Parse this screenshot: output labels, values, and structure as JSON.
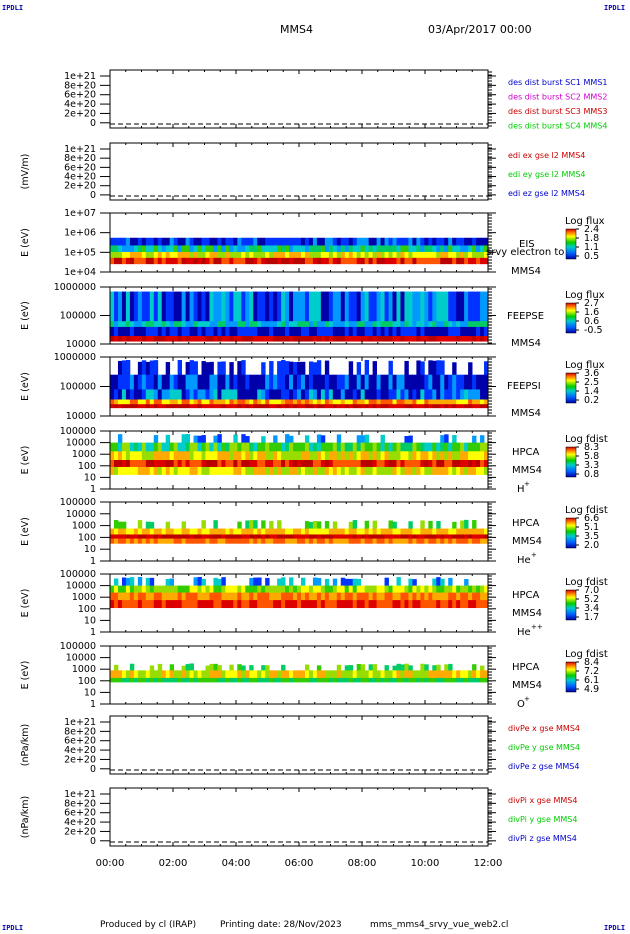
{
  "corner": {
    "tl": "IPDLI",
    "tr": "IPDLI",
    "bl": "IPDLI",
    "br": "IPDLI"
  },
  "header": {
    "spacecraft": "MMS4",
    "date": "03/Apr/2017 00:00"
  },
  "footer": {
    "produced": "Produced by cl (IRAP)",
    "printing": "Printing date: 28/Nov/2023",
    "script": "mms_mms4_srvy_vue_web2.cl"
  },
  "colors": {
    "frame": "#000000",
    "red": "#cc0000",
    "green": "#00cc00",
    "blue": "#0000cc",
    "magenta": "#cc00cc"
  },
  "chart_data": [
    {
      "type": "line",
      "ylabel": "",
      "yticks": [
        "1e+21",
        "8e+20",
        "6e+20",
        "4e+20",
        "2e+20",
        "0"
      ],
      "legend": [
        {
          "text": "des dist burst SC1 MMS1",
          "color": "#0000cc"
        },
        {
          "text": "des dist burst SC2 MMS2",
          "color": "#cc00cc"
        },
        {
          "text": "des dist burst SC3 MMS3",
          "color": "#cc0000"
        },
        {
          "text": "des dist burst SC4 MMS4",
          "color": "#00cc00"
        }
      ]
    },
    {
      "type": "line",
      "ylabel": "(mV/m)",
      "yticks": [
        "1e+21",
        "8e+20",
        "6e+20",
        "4e+20",
        "2e+20",
        "0"
      ],
      "legend": [
        {
          "text": "edi ex gse l2 MMS4",
          "color": "#cc0000"
        },
        {
          "text": "edi ey gse l2 MMS4",
          "color": "#00cc00"
        },
        {
          "text": "edi ez gse l2 MMS4",
          "color": "#0000cc"
        }
      ]
    },
    {
      "type": "heatmap",
      "ylabel": "E (eV)",
      "yticks": [
        "1e+07",
        "1e+06",
        "1e+05",
        "1e+04"
      ],
      "instrument": [
        "EIS",
        "srvy electron to",
        "MMS4"
      ],
      "cbar_title": "Log flux",
      "cbar_ticks": [
        "2.4",
        "1.8",
        "1.1",
        "0.5"
      ]
    },
    {
      "type": "heatmap",
      "ylabel": "E (eV)",
      "yticks": [
        "1000000",
        "100000",
        "10000"
      ],
      "instrument": [
        "FEEPSE",
        "MMS4"
      ],
      "cbar_title": "Log flux",
      "cbar_ticks": [
        "2.7",
        "1.6",
        "0.6",
        "-0.5"
      ]
    },
    {
      "type": "heatmap",
      "ylabel": "E (eV)",
      "yticks": [
        "1000000",
        "100000",
        "10000"
      ],
      "instrument": [
        "FEEPSI",
        "MMS4"
      ],
      "cbar_title": "Log flux",
      "cbar_ticks": [
        "3.6",
        "2.5",
        "1.4",
        "0.2"
      ]
    },
    {
      "type": "heatmap",
      "ylabel": "E (eV)",
      "yticks": [
        "100000",
        "10000",
        "1000",
        "100",
        "10",
        "1"
      ],
      "instrument": [
        "HPCA",
        "MMS4",
        "H",
        "+"
      ],
      "cbar_title": "Log fdist",
      "cbar_ticks": [
        "8.3",
        "5.8",
        "3.3",
        "0.8"
      ]
    },
    {
      "type": "heatmap",
      "ylabel": "E (eV)",
      "yticks": [
        "100000",
        "10000",
        "1000",
        "100",
        "10",
        "1"
      ],
      "instrument": [
        "HPCA",
        "MMS4",
        "He",
        "+"
      ],
      "cbar_title": "Log fdist",
      "cbar_ticks": [
        "6.6",
        "5.1",
        "3.5",
        "2.0"
      ]
    },
    {
      "type": "heatmap",
      "ylabel": "E (eV)",
      "yticks": [
        "100000",
        "10000",
        "1000",
        "100",
        "10",
        "1"
      ],
      "instrument": [
        "HPCA",
        "MMS4",
        "He",
        "++"
      ],
      "cbar_title": "Log fdist",
      "cbar_ticks": [
        "7.0",
        "5.2",
        "3.4",
        "1.7"
      ]
    },
    {
      "type": "heatmap",
      "ylabel": "E (eV)",
      "yticks": [
        "100000",
        "10000",
        "1000",
        "100",
        "10",
        "1"
      ],
      "instrument": [
        "HPCA",
        "MMS4",
        "O",
        "+"
      ],
      "cbar_title": "Log fdist",
      "cbar_ticks": [
        "8.4",
        "7.2",
        "6.1",
        "4.9"
      ]
    },
    {
      "type": "line",
      "ylabel": "(nPa/km)",
      "yticks": [
        "1e+21",
        "8e+20",
        "6e+20",
        "4e+20",
        "2e+20",
        "0"
      ],
      "legend": [
        {
          "text": "divPe x gse MMS4",
          "color": "#cc0000"
        },
        {
          "text": "divPe y gse MMS4",
          "color": "#00cc00"
        },
        {
          "text": "divPe z gse MMS4",
          "color": "#0000cc"
        }
      ]
    },
    {
      "type": "line",
      "ylabel": "(nPa/km)",
      "yticks": [
        "1e+21",
        "8e+20",
        "6e+20",
        "4e+20",
        "2e+20",
        "0"
      ],
      "legend": [
        {
          "text": "divPi x gse MMS4",
          "color": "#cc0000"
        },
        {
          "text": "divPi y gse MMS4",
          "color": "#00cc00"
        },
        {
          "text": "divPi z gse MMS4",
          "color": "#0000cc"
        }
      ]
    }
  ],
  "xaxis": {
    "ticks": [
      "00:00",
      "02:00",
      "04:00",
      "06:00",
      "08:00",
      "10:00",
      "12:00"
    ]
  }
}
